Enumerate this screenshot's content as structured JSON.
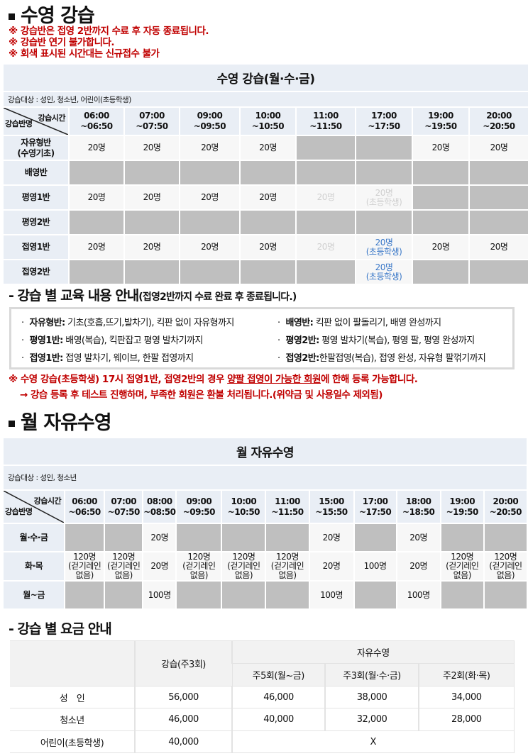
{
  "section1": {
    "title": "수영 강습",
    "notes": [
      "※ 강습반은 접영 2반까지 수료 후 자동 종료됩니다.",
      "※ 강습반 연기 불가합니다.",
      "※ 회색 표시된 시간대는 신규접수 불가"
    ]
  },
  "lesson_table": {
    "title": "수영 강습(월·수·금)",
    "target": "강습대상 : 성인, 청소년, 어린이(초등학생)",
    "corner_top": "강습시간",
    "corner_bottom": "강습반명",
    "times": [
      "06:00\n~06:50",
      "07:00\n~07:50",
      "09:00\n~09:50",
      "10:00\n~10:50",
      "11:00\n~11:50",
      "17:00\n~17:50",
      "19:00\n~19:50",
      "20:00\n~20:50"
    ],
    "rows": [
      {
        "name": "자유형반\n(수영기초)",
        "cells": [
          {
            "t": "20명",
            "s": "n"
          },
          {
            "t": "20명",
            "s": "n"
          },
          {
            "t": "20명",
            "s": "n"
          },
          {
            "t": "20명",
            "s": "n"
          },
          {
            "t": "",
            "s": "g"
          },
          {
            "t": "",
            "s": "g"
          },
          {
            "t": "20명",
            "s": "n"
          },
          {
            "t": "20명",
            "s": "n"
          }
        ]
      },
      {
        "name": "배영반",
        "cells": [
          {
            "t": "",
            "s": "g"
          },
          {
            "t": "",
            "s": "g"
          },
          {
            "t": "",
            "s": "g"
          },
          {
            "t": "",
            "s": "g"
          },
          {
            "t": "",
            "s": "g"
          },
          {
            "t": "",
            "s": "g"
          },
          {
            "t": "",
            "s": "g"
          },
          {
            "t": "",
            "s": "g"
          }
        ]
      },
      {
        "name": "평영1반",
        "cells": [
          {
            "t": "20명",
            "s": "n"
          },
          {
            "t": "20명",
            "s": "n"
          },
          {
            "t": "20명",
            "s": "n"
          },
          {
            "t": "20명",
            "s": "n"
          },
          {
            "t": "20명",
            "s": "d"
          },
          {
            "t": "20명\n(초등학생)",
            "s": "d"
          },
          {
            "t": "",
            "s": "g"
          },
          {
            "t": "",
            "s": "g"
          }
        ]
      },
      {
        "name": "평영2반",
        "cells": [
          {
            "t": "",
            "s": "g"
          },
          {
            "t": "",
            "s": "g"
          },
          {
            "t": "",
            "s": "g"
          },
          {
            "t": "",
            "s": "g"
          },
          {
            "t": "",
            "s": "g"
          },
          {
            "t": "",
            "s": "g"
          },
          {
            "t": "",
            "s": "g"
          },
          {
            "t": "",
            "s": "g"
          }
        ]
      },
      {
        "name": "접영1반",
        "cells": [
          {
            "t": "20명",
            "s": "n"
          },
          {
            "t": "20명",
            "s": "n"
          },
          {
            "t": "20명",
            "s": "n"
          },
          {
            "t": "20명",
            "s": "n"
          },
          {
            "t": "20명",
            "s": "d"
          },
          {
            "t": "20명\n(초등학생)",
            "s": "b"
          },
          {
            "t": "20명",
            "s": "n"
          },
          {
            "t": "20명",
            "s": "n"
          }
        ]
      },
      {
        "name": "접영2반",
        "cells": [
          {
            "t": "",
            "s": "g"
          },
          {
            "t": "",
            "s": "g"
          },
          {
            "t": "",
            "s": "g"
          },
          {
            "t": "",
            "s": "g"
          },
          {
            "t": "",
            "s": "g"
          },
          {
            "t": "20명\n(초등학생)",
            "s": "b"
          },
          {
            "t": "",
            "s": "g"
          },
          {
            "t": "",
            "s": "g"
          }
        ]
      }
    ]
  },
  "curriculum": {
    "title": "- 강습 별 교육 내용 안내",
    "subtitle": "(접영2반까지 수료 완료 후 종료됩니다.)",
    "items": [
      {
        "name": "자유형반:",
        "desc": " 기초(호흡,뜨기,발차기), 킥판 없이 자유형까지"
      },
      {
        "name": "배영반:",
        "desc": " 킥판 없이 팔돌리기, 배영 완성까지"
      },
      {
        "name": "평영1반:",
        "desc": " 배영(복습), 킥판잡고 평영 발차기까지"
      },
      {
        "name": "평영2반:",
        "desc": " 평영 발차기(복습), 평영 팔, 평영 완성까지"
      },
      {
        "name": "접영1반:",
        "desc": " 접영 발차기, 웨이브, 한팔 접영까지"
      },
      {
        "name": "접영2반:",
        "desc": "한팔접영(복습), 접영 완성, 자유형 팔꺾기까지"
      }
    ],
    "warning_pre": "※ 수영 강습(초등학생) 17시 접영1반, 접영2반의 경우 ",
    "warning_underline": "양팔 접영이 가능한 회원",
    "warning_post": "에 한해 등록 가능합니다.",
    "warning2": "→ 강습 등록 후 테스트 진행하며, 부족한 회원은 환불 처리됩니다.(위약금 및 사용일수 제외됨)"
  },
  "section2": {
    "title": "월 자유수영"
  },
  "free_table": {
    "title": "월 자유수영",
    "target": "강습대상 : 성인, 청소년",
    "corner_top": "강습시간",
    "corner_bottom": "강습반명",
    "times": [
      "06:00\n~06:50",
      "07:00\n~07:50",
      "08:00\n~08:50",
      "09:00\n~09:50",
      "10:00\n~10:50",
      "11:00\n~11:50",
      "15:00\n~15:50",
      "17:00\n~17:50",
      "18:00\n~18:50",
      "19:00\n~19:50",
      "20:00\n~20:50"
    ],
    "rows": [
      {
        "name": "월·수·금",
        "cells": [
          {
            "t": "",
            "s": "g"
          },
          {
            "t": "",
            "s": "g"
          },
          {
            "t": "20명",
            "s": "n"
          },
          {
            "t": "",
            "s": "g"
          },
          {
            "t": "",
            "s": "g"
          },
          {
            "t": "",
            "s": "g"
          },
          {
            "t": "20명",
            "s": "n"
          },
          {
            "t": "",
            "s": "g"
          },
          {
            "t": "20명",
            "s": "n"
          },
          {
            "t": "",
            "s": "g"
          },
          {
            "t": "",
            "s": "g"
          }
        ]
      },
      {
        "name": "화·목",
        "cells": [
          {
            "t": "120명\n(걷기레인\n없음)",
            "s": "n"
          },
          {
            "t": "120명\n(걷기레인\n없음)",
            "s": "n"
          },
          {
            "t": "20명",
            "s": "n"
          },
          {
            "t": "120명\n(걷기레인\n없음)",
            "s": "n"
          },
          {
            "t": "120명\n(걷기레인\n없음)",
            "s": "n"
          },
          {
            "t": "120명\n(걷기레인\n없음)",
            "s": "n"
          },
          {
            "t": "20명",
            "s": "n"
          },
          {
            "t": "100명",
            "s": "n"
          },
          {
            "t": "20명",
            "s": "n"
          },
          {
            "t": "120명\n(걷기레인\n없음)",
            "s": "n"
          },
          {
            "t": "120명\n(걷기레인\n없음)",
            "s": "n"
          }
        ]
      },
      {
        "name": "월~금",
        "cells": [
          {
            "t": "",
            "s": "g"
          },
          {
            "t": "",
            "s": "g"
          },
          {
            "t": "100명",
            "s": "n"
          },
          {
            "t": "",
            "s": "g"
          },
          {
            "t": "",
            "s": "g"
          },
          {
            "t": "",
            "s": "g"
          },
          {
            "t": "100명",
            "s": "n"
          },
          {
            "t": "",
            "s": "g"
          },
          {
            "t": "100명",
            "s": "n"
          },
          {
            "t": "",
            "s": "g"
          },
          {
            "t": "",
            "s": "g"
          }
        ]
      }
    ]
  },
  "pricing": {
    "title": "- 강습 별 요금 안내",
    "lesson_header": "강습(주3회)",
    "free_header": "자유수영",
    "free_sub": [
      "주5회(월~금)",
      "주3회(월·수·금)",
      "주2회(화·목)"
    ],
    "rows": [
      {
        "name": "성　인",
        "values": [
          "56,000",
          "46,000",
          "38,000",
          "34,000"
        ]
      },
      {
        "name": "청소년",
        "values": [
          "46,000",
          "40,000",
          "32,000",
          "28,000"
        ]
      }
    ],
    "child": {
      "name": "어린이(초등학생)",
      "lesson": "40,000",
      "free": "X"
    }
  },
  "colors": {
    "note_red": "#c00000",
    "grey_closed": "#bfbfbf",
    "header_bg": "#e9eef5",
    "blue_text": "#3a78c8"
  }
}
